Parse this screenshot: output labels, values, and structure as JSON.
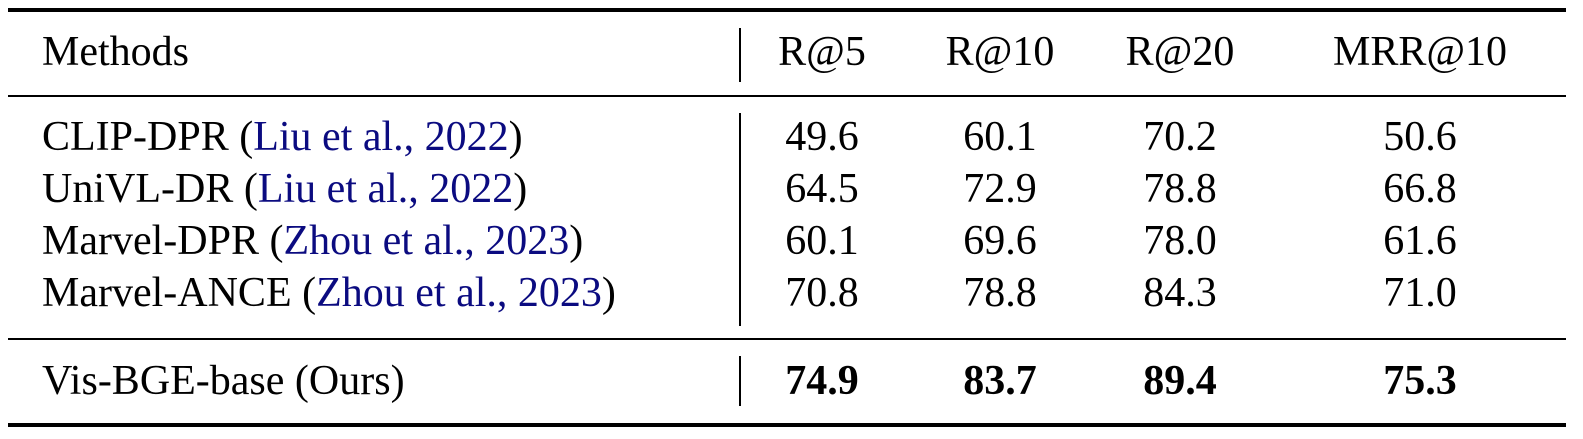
{
  "table": {
    "columns": [
      "Methods",
      "R@5",
      "R@10",
      "R@20",
      "MRR@10"
    ],
    "rows": [
      {
        "method": "CLIP-DPR",
        "cite": "Liu et al., 2022",
        "values": [
          "49.6",
          "60.1",
          "70.2",
          "50.6"
        ]
      },
      {
        "method": "UniVL-DR",
        "cite": "Liu et al., 2022",
        "values": [
          "64.5",
          "72.9",
          "78.8",
          "66.8"
        ]
      },
      {
        "method": "Marvel-DPR",
        "cite": "Zhou et al., 2023",
        "values": [
          "60.1",
          "69.6",
          "78.0",
          "61.6"
        ]
      },
      {
        "method": "Marvel-ANCE",
        "cite": "Zhou et al., 2023",
        "values": [
          "70.8",
          "78.8",
          "84.3",
          "71.0"
        ]
      }
    ],
    "ours": {
      "method": "Vis-BGE-base (Ours)",
      "values": [
        "74.9",
        "83.7",
        "89.4",
        "75.3"
      ]
    },
    "citation_color": "#0b0b80"
  }
}
